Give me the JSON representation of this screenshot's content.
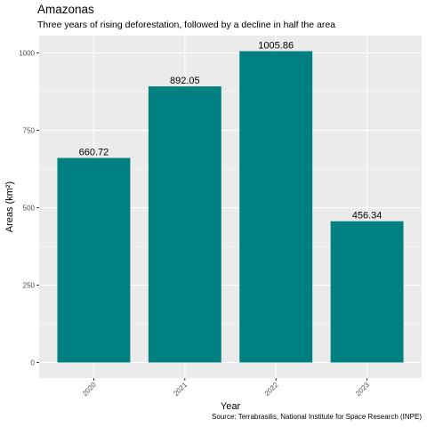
{
  "header": {
    "title": "Amazonas",
    "subtitle": "Three years of rising deforestation, followed by a decline in half the area",
    "caption": "Source: Terrabrasilis, National Institute for Space Research (INPE)"
  },
  "colors": {
    "bar": "#008080",
    "panel": "#ebebeb",
    "grid_major": "#ffffff",
    "tick": "#4d4d4d"
  },
  "chart_data": {
    "type": "bar",
    "title": "Amazonas",
    "subtitle": "Three years of rising deforestation, followed by a decline in half the area",
    "xlabel": "Year",
    "ylabel": "Areas (km²)",
    "categories": [
      "2020",
      "2021",
      "2022",
      "2023"
    ],
    "values": [
      660.72,
      892.05,
      1005.86,
      456.34
    ],
    "data_labels": [
      "660.72",
      "892.05",
      "1005.86",
      "456.34"
    ],
    "y_ticks": [
      0,
      250,
      500,
      750,
      1000
    ],
    "ylim": [
      -50.29,
      1056.15
    ],
    "grid": true,
    "legend": "none"
  }
}
